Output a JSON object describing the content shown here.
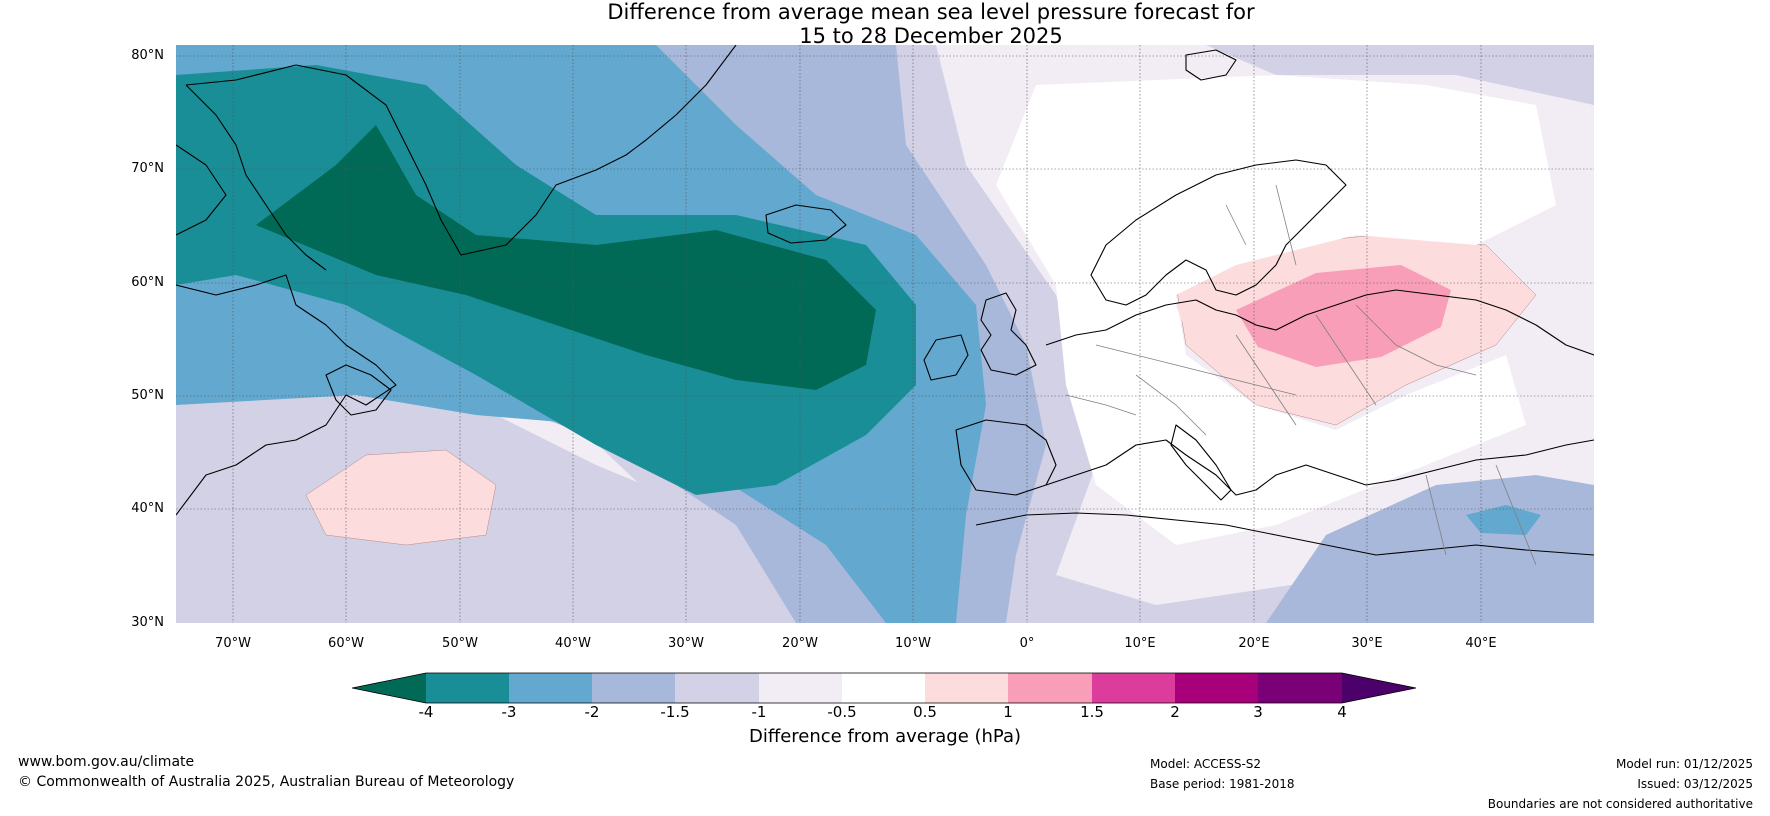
{
  "title": {
    "line1": "Difference from average mean sea level pressure forecast for",
    "line2": "15 to 28 December 2025"
  },
  "map": {
    "lat_labels": [
      "80°N",
      "70°N",
      "60°N",
      "50°N",
      "40°N",
      "30°N"
    ],
    "lon_labels": [
      "70°W",
      "60°W",
      "50°W",
      "40°W",
      "30°W",
      "20°W",
      "10°W",
      "0°",
      "10°E",
      "20°E",
      "30°E",
      "40°E"
    ],
    "colors": {
      "lt_m4": "#006a56",
      "m4_m3": "#1a8e96",
      "m3_m2": "#62a8cf",
      "m2_m15": "#a8b8da",
      "m15_m1": "#d2d1e5",
      "m1_m05": "#f2ecf4",
      "m05_05": "#ffffff",
      "p05_1": "#fcdcdc",
      "p1_15": "#f89eb8",
      "land_outline": "#000000",
      "border": "#808080"
    }
  },
  "colorbar": {
    "ticks": [
      "-4",
      "-3",
      "-2",
      "-1.5",
      "-1",
      "-0.5",
      "0.5",
      "1",
      "1.5",
      "2",
      "3",
      "4"
    ],
    "colors": [
      "#006a56",
      "#1a8e96",
      "#62a8cf",
      "#a8b8da",
      "#d2d1e5",
      "#f2ecf4",
      "#ffffff",
      "#fcdcdc",
      "#f89eb8",
      "#dc3c9c",
      "#a8007a",
      "#790077",
      "#4c006a"
    ],
    "label": "Difference from average (hPa)"
  },
  "footer": {
    "website": "www.bom.gov.au/climate",
    "copyright": "© Commonwealth of Australia 2025, Australian Bureau of Meteorology",
    "model": "Model: ACCESS-S2",
    "base_period": "Base period: 1981-2018",
    "model_run": "Model run: 01/12/2025",
    "issued": "Issued: 03/12/2025",
    "disclaimer": "Boundaries are not considered authoritative"
  }
}
